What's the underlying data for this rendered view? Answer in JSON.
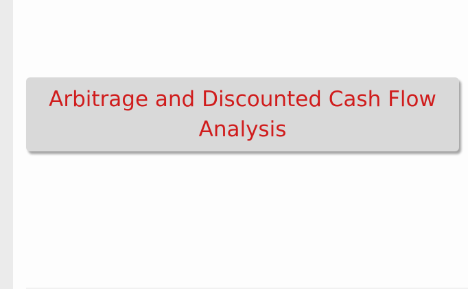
{
  "slide": {
    "title": "Arbitrage and Discounted Cash Flow Analysis"
  },
  "colors": {
    "title_text": "#d01c1c",
    "title_box": "#d9d9d9",
    "gutter": "#ebebeb",
    "background": "#fdfdfd"
  }
}
